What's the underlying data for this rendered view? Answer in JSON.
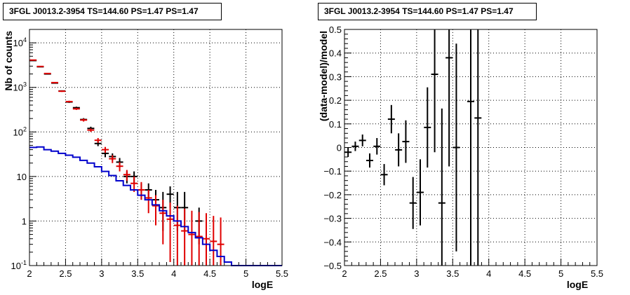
{
  "chart_data": [
    {
      "type": "line",
      "title": "3FGL J0013.2-3954 TS=144.60 PS=1.47 PS=1.47",
      "xlabel": "logE",
      "ylabel": "Nb of counts",
      "xlim": [
        2,
        5.5
      ],
      "ylim": [
        0.1,
        20000
      ],
      "yscale": "log",
      "grid": true,
      "x_ticks": [
        "2",
        "2.5",
        "3",
        "3.5",
        "4",
        "4.5",
        "5",
        "5.5"
      ],
      "y_ticks": [
        "10^-1",
        "1",
        "10",
        "10^2",
        "10^3",
        "10^4"
      ],
      "series": [
        {
          "color": "#000000",
          "style": "points-with-errors",
          "x": [
            2.05,
            2.15,
            2.25,
            2.35,
            2.45,
            2.55,
            2.65,
            2.75,
            2.85,
            2.95,
            3.05,
            3.15,
            3.25,
            3.35,
            3.45,
            3.55,
            3.65,
            3.75,
            3.85,
            3.95,
            4.05,
            4.15,
            4.35
          ],
          "y": [
            4000,
            2900,
            2000,
            1250,
            830,
            470,
            350,
            190,
            120,
            55,
            33,
            28,
            21,
            10,
            10,
            5,
            5,
            3,
            2,
            4,
            2,
            2,
            1
          ],
          "y_lo": [
            3937,
            2846,
            1955,
            1215,
            801,
            448,
            331,
            176,
            109,
            48,
            27,
            23,
            16,
            7,
            7,
            3,
            3,
            1.3,
            0.6,
            2,
            0.6,
            0.6,
            0.3
          ],
          "y_hi": [
            4063,
            2954,
            2045,
            1285,
            859,
            492,
            369,
            204,
            131,
            62,
            39,
            33,
            26,
            13,
            13,
            7,
            7,
            5,
            4.5,
            6,
            4.5,
            4.5,
            2
          ]
        },
        {
          "color": "#e00000",
          "style": "points-with-errors",
          "x": [
            2.05,
            2.15,
            2.25,
            2.35,
            2.45,
            2.55,
            2.65,
            2.75,
            2.85,
            2.95,
            3.05,
            3.15,
            3.25,
            3.35,
            3.45,
            3.55,
            3.65,
            3.75,
            3.85,
            3.95,
            4.05,
            4.15,
            4.25,
            4.35,
            4.45,
            4.55,
            4.65
          ],
          "y": [
            4100,
            2950,
            2050,
            1280,
            820,
            480,
            330,
            185,
            110,
            65,
            40,
            25,
            17,
            11,
            7,
            5,
            3.3,
            2.2,
            1.5,
            1.1,
            0.8,
            0.6,
            0.5,
            0.45,
            0.4,
            0.35,
            0.3
          ],
          "y_lo": [
            4036,
            2896,
            2005,
            1244,
            791,
            458,
            312,
            171,
            100,
            57,
            34,
            20,
            13,
            8,
            4.5,
            3,
            1.5,
            0.8,
            0.3,
            0.12,
            0.1,
            0.1,
            0.1,
            0.1,
            0.1,
            0.1,
            0.1
          ],
          "y_hi": [
            4164,
            3004,
            2095,
            1316,
            849,
            502,
            348,
            199,
            120,
            73,
            46,
            30,
            21,
            14,
            10,
            7.5,
            5,
            3.8,
            3,
            2.6,
            2.2,
            1.9,
            1.7,
            1.6,
            1.5,
            1.3,
            1.2
          ]
        },
        {
          "color": "#0000cc",
          "style": "histogram",
          "bin_edges": [
            2.0,
            2.1,
            2.2,
            2.3,
            2.4,
            2.5,
            2.6,
            2.7,
            2.8,
            2.9,
            3.0,
            3.1,
            3.2,
            3.3,
            3.4,
            3.5,
            3.6,
            3.7,
            3.8,
            3.9,
            4.0,
            4.1,
            4.2,
            4.3,
            4.4,
            4.5,
            4.6,
            4.7,
            4.8,
            4.9,
            5.0,
            5.1,
            5.2,
            5.3,
            5.4,
            5.5
          ],
          "values": [
            45,
            46,
            40,
            37,
            33,
            30,
            27,
            23,
            20,
            16.5,
            13,
            10.5,
            8,
            6.3,
            5,
            3.8,
            3,
            2.3,
            1.7,
            1.3,
            1.0,
            0.75,
            0.55,
            0.42,
            0.3,
            0.22,
            0.16,
            0.12,
            0.1,
            0.1,
            0.1,
            0.1,
            0.1,
            0.1,
            0.1
          ]
        }
      ]
    },
    {
      "type": "scatter",
      "title": "3FGL J0013.2-3954 TS=144.60 PS=1.47 PS=1.47",
      "xlabel": "logE",
      "ylabel": "(data-model)/model",
      "xlim": [
        2,
        5.5
      ],
      "ylim": [
        -0.5,
        0.5
      ],
      "grid": true,
      "x_ticks": [
        "2",
        "2.5",
        "3",
        "3.5",
        "4",
        "4.5",
        "5",
        "5.5"
      ],
      "y_ticks": [
        "-0.5",
        "-0.4",
        "-0.3",
        "-0.2",
        "-0.1",
        "0",
        "0.1",
        "0.2",
        "0.3",
        "0.4",
        "0.5"
      ],
      "series": [
        {
          "color": "#000000",
          "style": "points-with-errors",
          "x": [
            2.05,
            2.15,
            2.25,
            2.35,
            2.45,
            2.55,
            2.65,
            2.75,
            2.85,
            2.95,
            3.05,
            3.15,
            3.25,
            3.35,
            3.45,
            3.55,
            3.75,
            3.85
          ],
          "y": [
            -0.02,
            0.005,
            0.03,
            -0.055,
            0.005,
            -0.115,
            0.12,
            -0.01,
            0.025,
            -0.235,
            -0.19,
            0.085,
            0.31,
            -0.235,
            0.38,
            0.0,
            0.195,
            0.125
          ],
          "y_err": [
            0.02,
            0.02,
            0.025,
            0.03,
            0.035,
            0.045,
            0.06,
            0.07,
            0.09,
            0.11,
            0.14,
            0.17,
            0.33,
            0.4,
            0.46,
            0.44,
            0.8,
            0.8
          ]
        }
      ]
    }
  ]
}
